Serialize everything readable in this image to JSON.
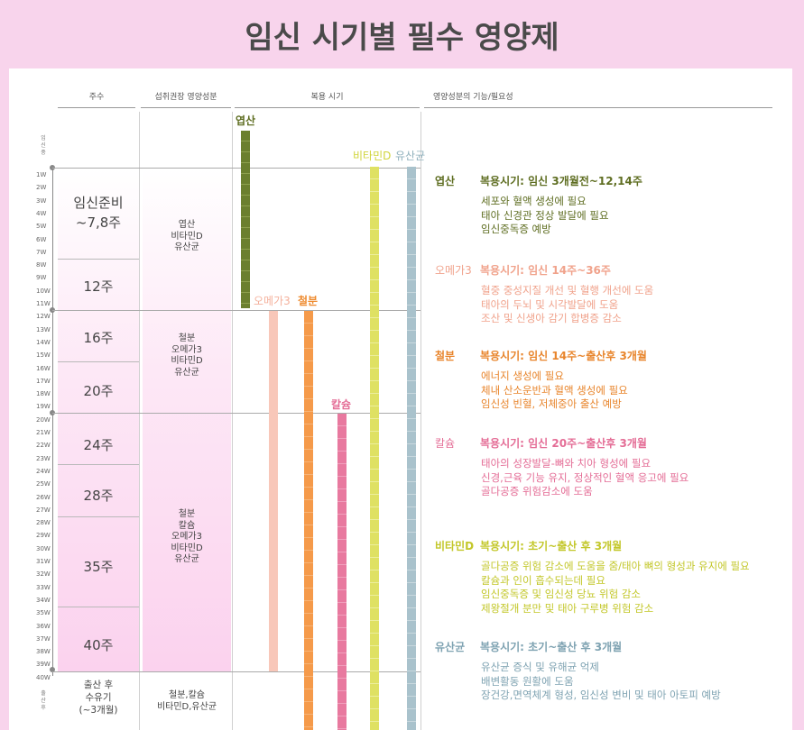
{
  "title": "임신 시기별 필수 영양제",
  "headers": {
    "week": "주수",
    "nutrient": "섭취권장 영양성분",
    "timing": "복용 시기",
    "function": "영양성분의 기능/필요성"
  },
  "side_labels": {
    "pregnancy": "임신중",
    "postpartum": "출산후"
  },
  "week_ticks": [
    "1W",
    "2W",
    "3W",
    "4W",
    "5W",
    "6W",
    "7W",
    "8W",
    "9W",
    "10W",
    "11W",
    "12W",
    "13W",
    "14W",
    "15W",
    "16W",
    "17W",
    "18W",
    "19W",
    "20W",
    "21W",
    "22W",
    "23W",
    "24W",
    "25W",
    "26W",
    "27W",
    "28W",
    "29W",
    "30W",
    "31W",
    "32W",
    "33W",
    "34W",
    "35W",
    "36W",
    "37W",
    "38W",
    "39W",
    "40W"
  ],
  "segments": [
    {
      "label": "임신준비\n~7,8주"
    },
    {
      "label": "12주"
    },
    {
      "label": "16주"
    },
    {
      "label": "20주"
    },
    {
      "label": "24주"
    },
    {
      "label": "28주"
    },
    {
      "label": "35주"
    },
    {
      "label": "40주"
    },
    {
      "label": "출산 후\n수유기\n(~3개월)"
    }
  ],
  "nutrient_groups": [
    {
      "label": "엽산\n비타민D\n유산균"
    },
    {
      "label": "철분\n오메가3\n비타민D\n유산균"
    },
    {
      "label": "철분\n칼슘\n오메가3\n비타민D\n유산균"
    },
    {
      "label": "철분,칼슘\n비타민D,유산균"
    }
  ],
  "bars": [
    {
      "name": "엽산",
      "color": "#6b7f2e"
    },
    {
      "name": "오메가3",
      "color": "#f8c7b9"
    },
    {
      "name": "철분",
      "color": "#f59a4a"
    },
    {
      "name": "칼슘",
      "color": "#e8799f"
    },
    {
      "name": "비타민D",
      "color": "#dfe163"
    },
    {
      "name": "유산균",
      "color": "#a9c2cc"
    }
  ],
  "functions": [
    {
      "name": "엽산",
      "color": "#5f6e22",
      "period": "복용시기: 임신 3개월전~12,14주",
      "lines": [
        "세포와 혈액 생성에 필요",
        "태아 신경관 정상 발달에 필요",
        "임신중독증 예방"
      ]
    },
    {
      "name": "오메가3",
      "color": "#f0a28b",
      "period": "복용시기: 임신 14주~36주",
      "lines": [
        "혈중 중성지질 개선 및 혈행 개선에 도움",
        "태아의 두뇌 및 시각발달에 도움",
        "조산 및 신생아 감기 합병증 감소"
      ]
    },
    {
      "name": "철분",
      "color": "#e8852c",
      "period": "복용시기: 임신 14주~출산후 3개월",
      "lines": [
        "에너지 생성에 필요",
        "체내 산소운반과 혈액 생성에 필요",
        "임신성 빈혈, 저체중아 출산 예방"
      ]
    },
    {
      "name": "칼슘",
      "color": "#e46d96",
      "period": "복용시기: 임신 20주~출산후 3개월",
      "lines": [
        "태아의 성장발달-뼈와 치아 형성에 필요",
        "신경,근육 기능 유지, 정상적인 혈액 응고에 필요",
        "골다공증 위험감소에 도움"
      ]
    },
    {
      "name": "비타민D",
      "color": "#c3c72a",
      "period": "복용시기: 초기~출산 후 3개월",
      "lines": [
        "골다공증 위험 감소에 도움을 줌/태아 뼈의 형성과 유지에 필요",
        "칼슘과 인이 흡수되는데 필요",
        "임신중독증 및 임신성 당뇨 위험 감소",
        "제왕절개 분만 및 태아 구루병 위험 감소"
      ]
    },
    {
      "name": "유산균",
      "color": "#7fa3b2",
      "period": "복용시기: 초기~출산 후 3개월",
      "lines": [
        "유산균 증식 및 유해균 억제",
        "배변활동 원활에 도움",
        "장건강,면역체계 형성, 임신성 변비 및 태아 아토피 예방"
      ]
    }
  ]
}
